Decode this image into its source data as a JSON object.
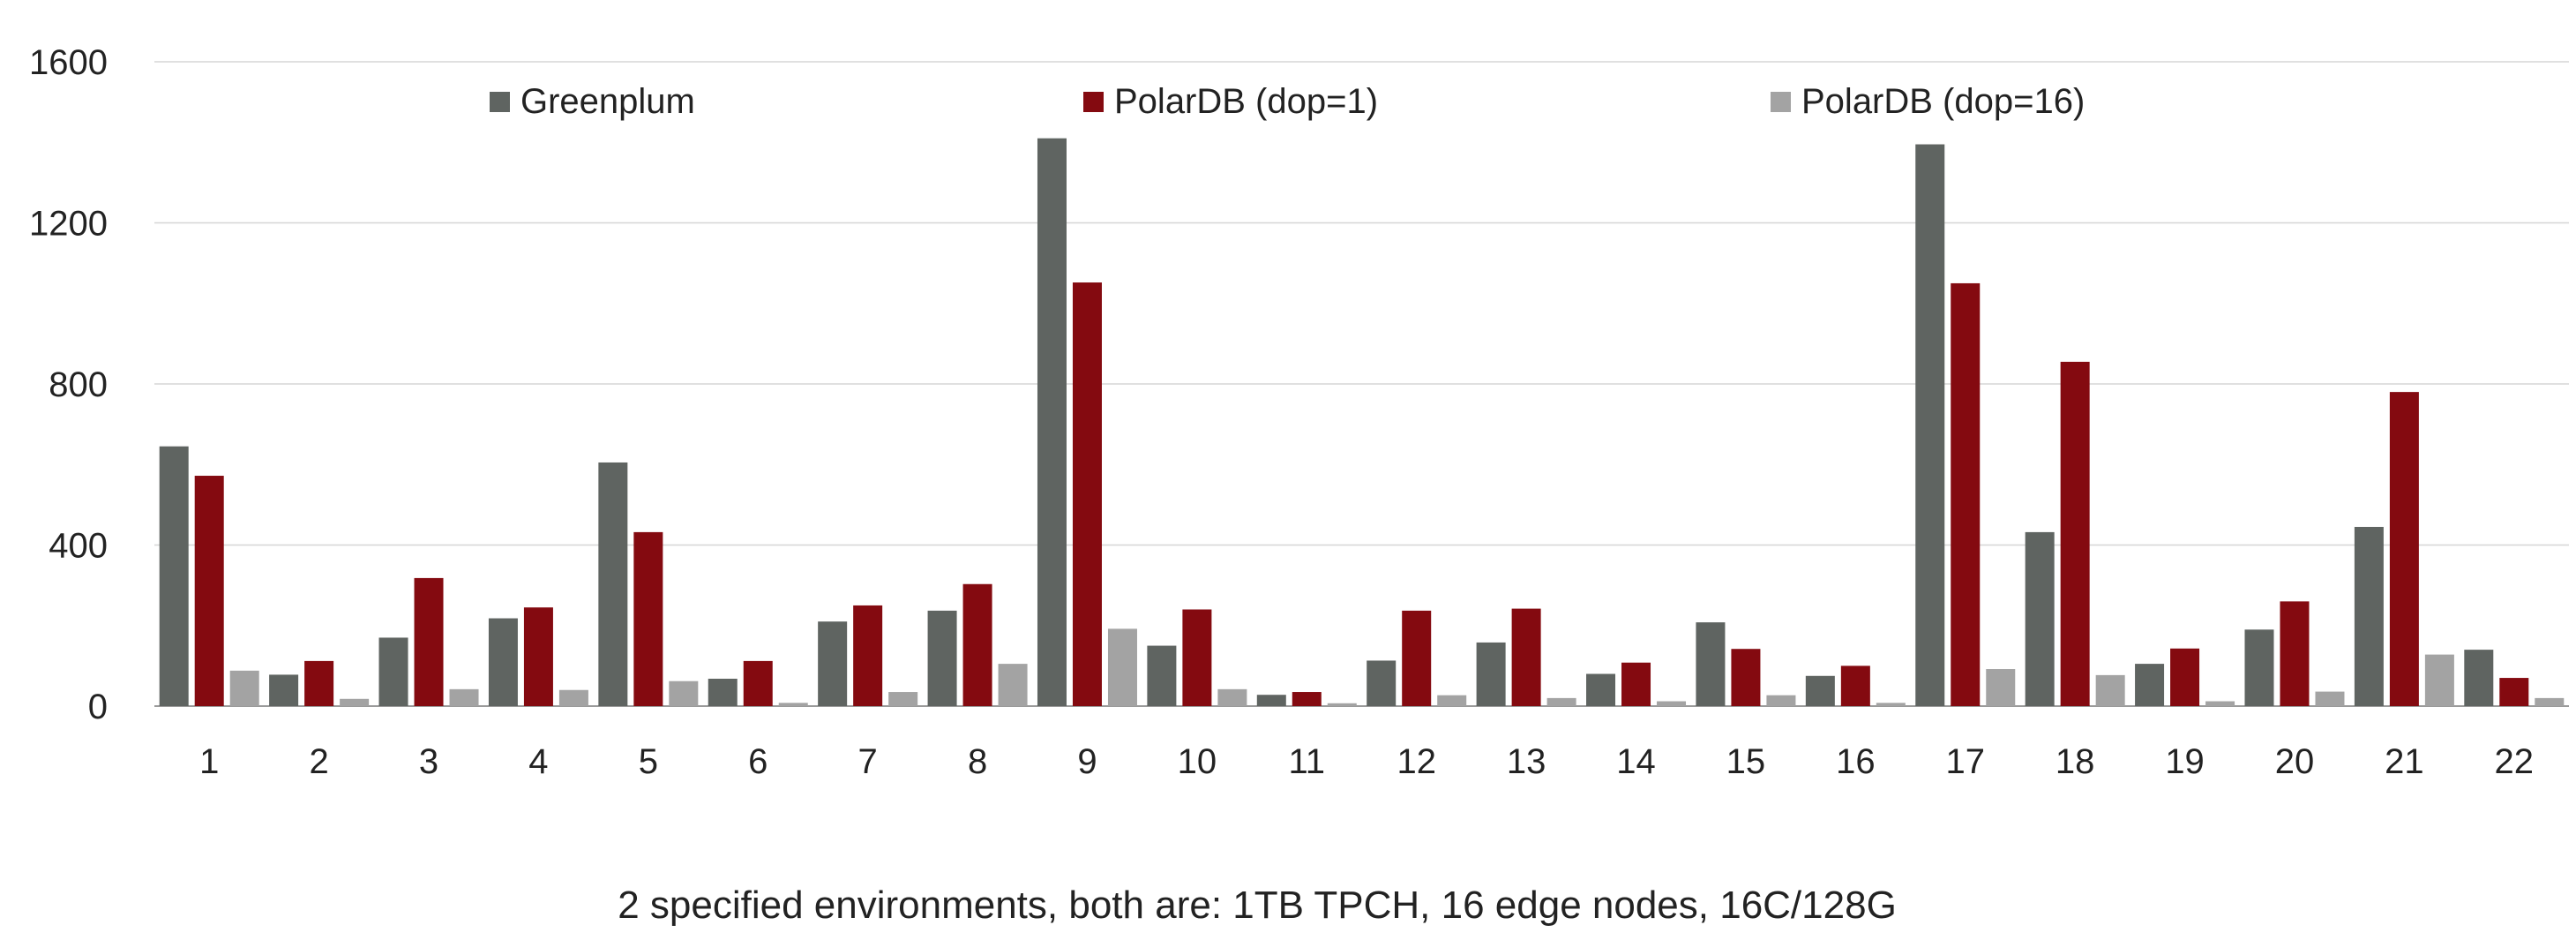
{
  "chart_data": {
    "type": "bar",
    "title": "",
    "caption": "2 specified environments, both are: 1TB TPCH, 16 edge nodes, 16C/128G",
    "xlabel": "",
    "ylabel": "",
    "ylim": [
      0,
      1600
    ],
    "yticks": [
      0,
      400,
      800,
      1200,
      1600
    ],
    "grid": true,
    "legend_position": "top",
    "categories": [
      "1",
      "2",
      "3",
      "4",
      "5",
      "6",
      "7",
      "8",
      "9",
      "10",
      "11",
      "12",
      "13",
      "14",
      "15",
      "16",
      "17",
      "18",
      "19",
      "20",
      "21",
      "22"
    ],
    "series": [
      {
        "name": "Greenplum",
        "color": "#5f6461",
        "values": [
          645,
          78,
          170,
          218,
          605,
          68,
          210,
          237,
          1410,
          150,
          28,
          113,
          158,
          80,
          208,
          75,
          1395,
          432,
          105,
          190,
          445,
          140
        ]
      },
      {
        "name": "PolarDB (dop=1)",
        "color": "#840a10",
        "values": [
          572,
          112,
          318,
          245,
          432,
          112,
          250,
          303,
          1052,
          240,
          35,
          237,
          242,
          108,
          142,
          100,
          1050,
          855,
          143,
          260,
          780,
          70
        ]
      },
      {
        "name": "PolarDB (dop=16)",
        "color": "#a3a3a3",
        "values": [
          88,
          18,
          42,
          40,
          62,
          8,
          35,
          105,
          192,
          42,
          7,
          27,
          20,
          12,
          27,
          8,
          92,
          77,
          12,
          36,
          128,
          20
        ]
      }
    ]
  }
}
